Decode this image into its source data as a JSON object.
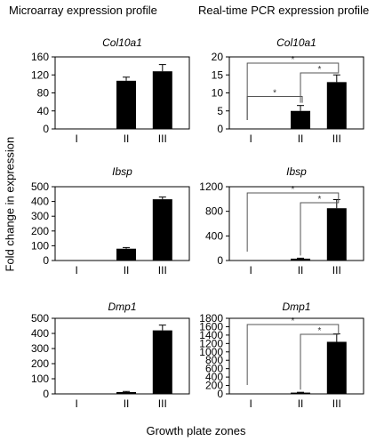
{
  "header": {
    "left": "Microarray expression profile",
    "right": "Real-time PCR expression profile"
  },
  "axes": {
    "ylabel": "Fold change in expression",
    "xlabel": "Growth plate zones"
  },
  "chart_data": [
    {
      "type": "bar",
      "title": "Col10a1",
      "group": "Microarray expression profile",
      "categories": [
        "I",
        "II",
        "III"
      ],
      "values": [
        1,
        107,
        128
      ],
      "errors": [
        0,
        8,
        15
      ],
      "ylim": [
        0,
        160
      ],
      "yticks": [
        0,
        40,
        80,
        120,
        160
      ],
      "significance": []
    },
    {
      "type": "bar",
      "title": "Col10a1",
      "group": "Real-time PCR expression profile",
      "categories": [
        "I",
        "II",
        "III"
      ],
      "values": [
        0,
        5,
        13
      ],
      "errors": [
        0,
        1.5,
        2
      ],
      "ylim": [
        0,
        20
      ],
      "yticks": [
        0,
        5,
        10,
        15,
        20
      ],
      "significance": [
        {
          "from": 0,
          "to": 1,
          "label": "*"
        },
        {
          "from": 1,
          "to": 2,
          "label": "*"
        },
        {
          "from": 0,
          "to": 2,
          "label": "*"
        }
      ]
    },
    {
      "type": "bar",
      "title": "Ibsp",
      "group": "Microarray expression profile",
      "categories": [
        "I",
        "II",
        "III"
      ],
      "values": [
        1,
        80,
        415
      ],
      "errors": [
        0,
        8,
        15
      ],
      "ylim": [
        0,
        500
      ],
      "yticks": [
        0,
        100,
        200,
        300,
        400,
        500
      ],
      "significance": []
    },
    {
      "type": "bar",
      "title": "Ibsp",
      "group": "Real-time PCR expression profile",
      "categories": [
        "I",
        "II",
        "III"
      ],
      "values": [
        0,
        30,
        850
      ],
      "errors": [
        0,
        8,
        140
      ],
      "ylim": [
        0,
        1200
      ],
      "yticks": [
        0,
        400,
        800,
        1200
      ],
      "significance": [
        {
          "from": 0,
          "to": 2,
          "label": "*"
        },
        {
          "from": 1,
          "to": 2,
          "label": "*"
        }
      ]
    },
    {
      "type": "bar",
      "title": "Dmp1",
      "group": "Microarray expression profile",
      "categories": [
        "I",
        "II",
        "III"
      ],
      "values": [
        1,
        12,
        420
      ],
      "errors": [
        0,
        4,
        35
      ],
      "ylim": [
        0,
        500
      ],
      "yticks": [
        0,
        100,
        200,
        300,
        400,
        500
      ],
      "significance": []
    },
    {
      "type": "bar",
      "title": "Dmp1",
      "group": "Real-time PCR expression profile",
      "categories": [
        "I",
        "II",
        "III"
      ],
      "values": [
        0,
        30,
        1240
      ],
      "errors": [
        0,
        8,
        190
      ],
      "ylim": [
        0,
        1800
      ],
      "yticks": [
        0,
        200,
        400,
        600,
        800,
        1000,
        1200,
        1400,
        1600,
        1800
      ],
      "significance": [
        {
          "from": 0,
          "to": 2,
          "label": "*"
        },
        {
          "from": 1,
          "to": 2,
          "label": "*"
        }
      ]
    }
  ]
}
